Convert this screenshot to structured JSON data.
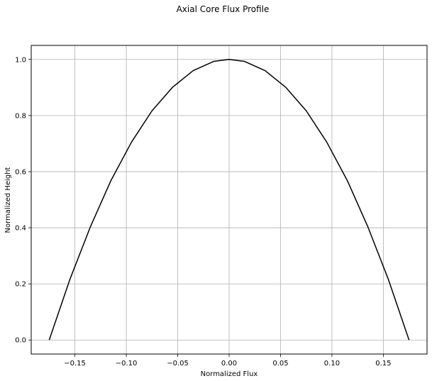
{
  "chart_data": {
    "type": "line",
    "title": "Axial Core Flux Profile",
    "xlabel": "Normalized Flux",
    "ylabel": "Normalized Height",
    "xlim": [
      -0.1925,
      0.1925
    ],
    "ylim": [
      -0.05,
      1.05
    ],
    "grid": true,
    "x_ticks": [
      -0.15,
      -0.1,
      -0.05,
      0.0,
      0.05,
      0.1,
      0.15
    ],
    "x_tick_labels": [
      "−0.15",
      "−0.10",
      "−0.05",
      "0.00",
      "0.05",
      "0.10",
      "0.15"
    ],
    "y_ticks": [
      0.0,
      0.2,
      0.4,
      0.6,
      0.8,
      1.0
    ],
    "y_tick_labels": [
      "0.0",
      "0.2",
      "0.4",
      "0.6",
      "0.8",
      "1.0"
    ],
    "series": [
      {
        "color": "#000000",
        "x": [
          -0.175,
          -0.155,
          -0.135,
          -0.115,
          -0.095,
          -0.075,
          -0.055,
          -0.035,
          -0.015,
          0.0,
          0.015,
          0.035,
          0.055,
          0.075,
          0.095,
          0.115,
          0.135,
          0.155,
          0.175
        ],
        "y": [
          0.0,
          0.215,
          0.403,
          0.568,
          0.705,
          0.817,
          0.901,
          0.96,
          0.993,
          1.0,
          0.993,
          0.96,
          0.901,
          0.817,
          0.705,
          0.568,
          0.403,
          0.215,
          0.0
        ]
      }
    ]
  }
}
